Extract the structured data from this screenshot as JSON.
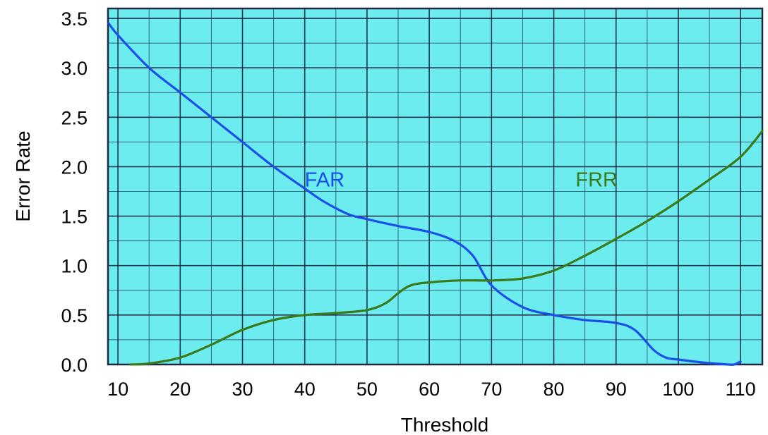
{
  "chart_data": {
    "type": "line",
    "title": "",
    "xlabel": "Threshold",
    "ylabel": "Error Rate",
    "xlim": [
      8.4,
      113.5
    ],
    "ylim": [
      0.0,
      3.6
    ],
    "x_ticks": [
      10,
      20,
      30,
      40,
      50,
      60,
      70,
      80,
      90,
      100,
      110
    ],
    "x_tick_labels": [
      "10",
      "20",
      "30",
      "40",
      "50",
      "60",
      "70",
      "80",
      "90",
      "100",
      "110"
    ],
    "y_ticks": [
      0.0,
      0.5,
      1.0,
      1.5,
      2.0,
      2.5,
      3.0,
      3.5
    ],
    "y_tick_labels": [
      "0.0",
      "0.5",
      "1.0",
      "1.5",
      "2.0",
      "2.5",
      "3.0",
      "3.5"
    ],
    "grid": true,
    "background": "#6cecee",
    "grid_color": "#1e2a44",
    "series": [
      {
        "name": "FAR",
        "color": "#1a4fe8",
        "x": [
          8.5,
          10,
          15,
          20,
          25,
          30,
          35,
          40,
          43,
          47,
          50,
          55,
          60,
          64,
          67,
          70,
          75,
          80,
          85,
          90,
          93,
          96,
          98,
          100,
          104,
          108,
          109,
          110
        ],
        "y": [
          3.45,
          3.33,
          3.0,
          2.75,
          2.5,
          2.25,
          2.0,
          1.78,
          1.65,
          1.52,
          1.47,
          1.4,
          1.34,
          1.25,
          1.1,
          0.8,
          0.58,
          0.5,
          0.45,
          0.42,
          0.35,
          0.15,
          0.07,
          0.05,
          0.02,
          0.0,
          0.0,
          0.03
        ]
      },
      {
        "name": "FRR",
        "color": "#3a7a1a",
        "x": [
          12,
          15,
          20,
          25,
          30,
          35,
          40,
          45,
          50,
          53,
          55,
          57,
          60,
          65,
          70,
          75,
          80,
          85,
          90,
          95,
          100,
          105,
          110,
          113.5
        ],
        "y": [
          0.0,
          0.01,
          0.07,
          0.2,
          0.35,
          0.45,
          0.5,
          0.52,
          0.55,
          0.62,
          0.72,
          0.8,
          0.83,
          0.85,
          0.85,
          0.87,
          0.95,
          1.1,
          1.27,
          1.45,
          1.65,
          1.87,
          2.1,
          2.36
        ]
      }
    ]
  }
}
